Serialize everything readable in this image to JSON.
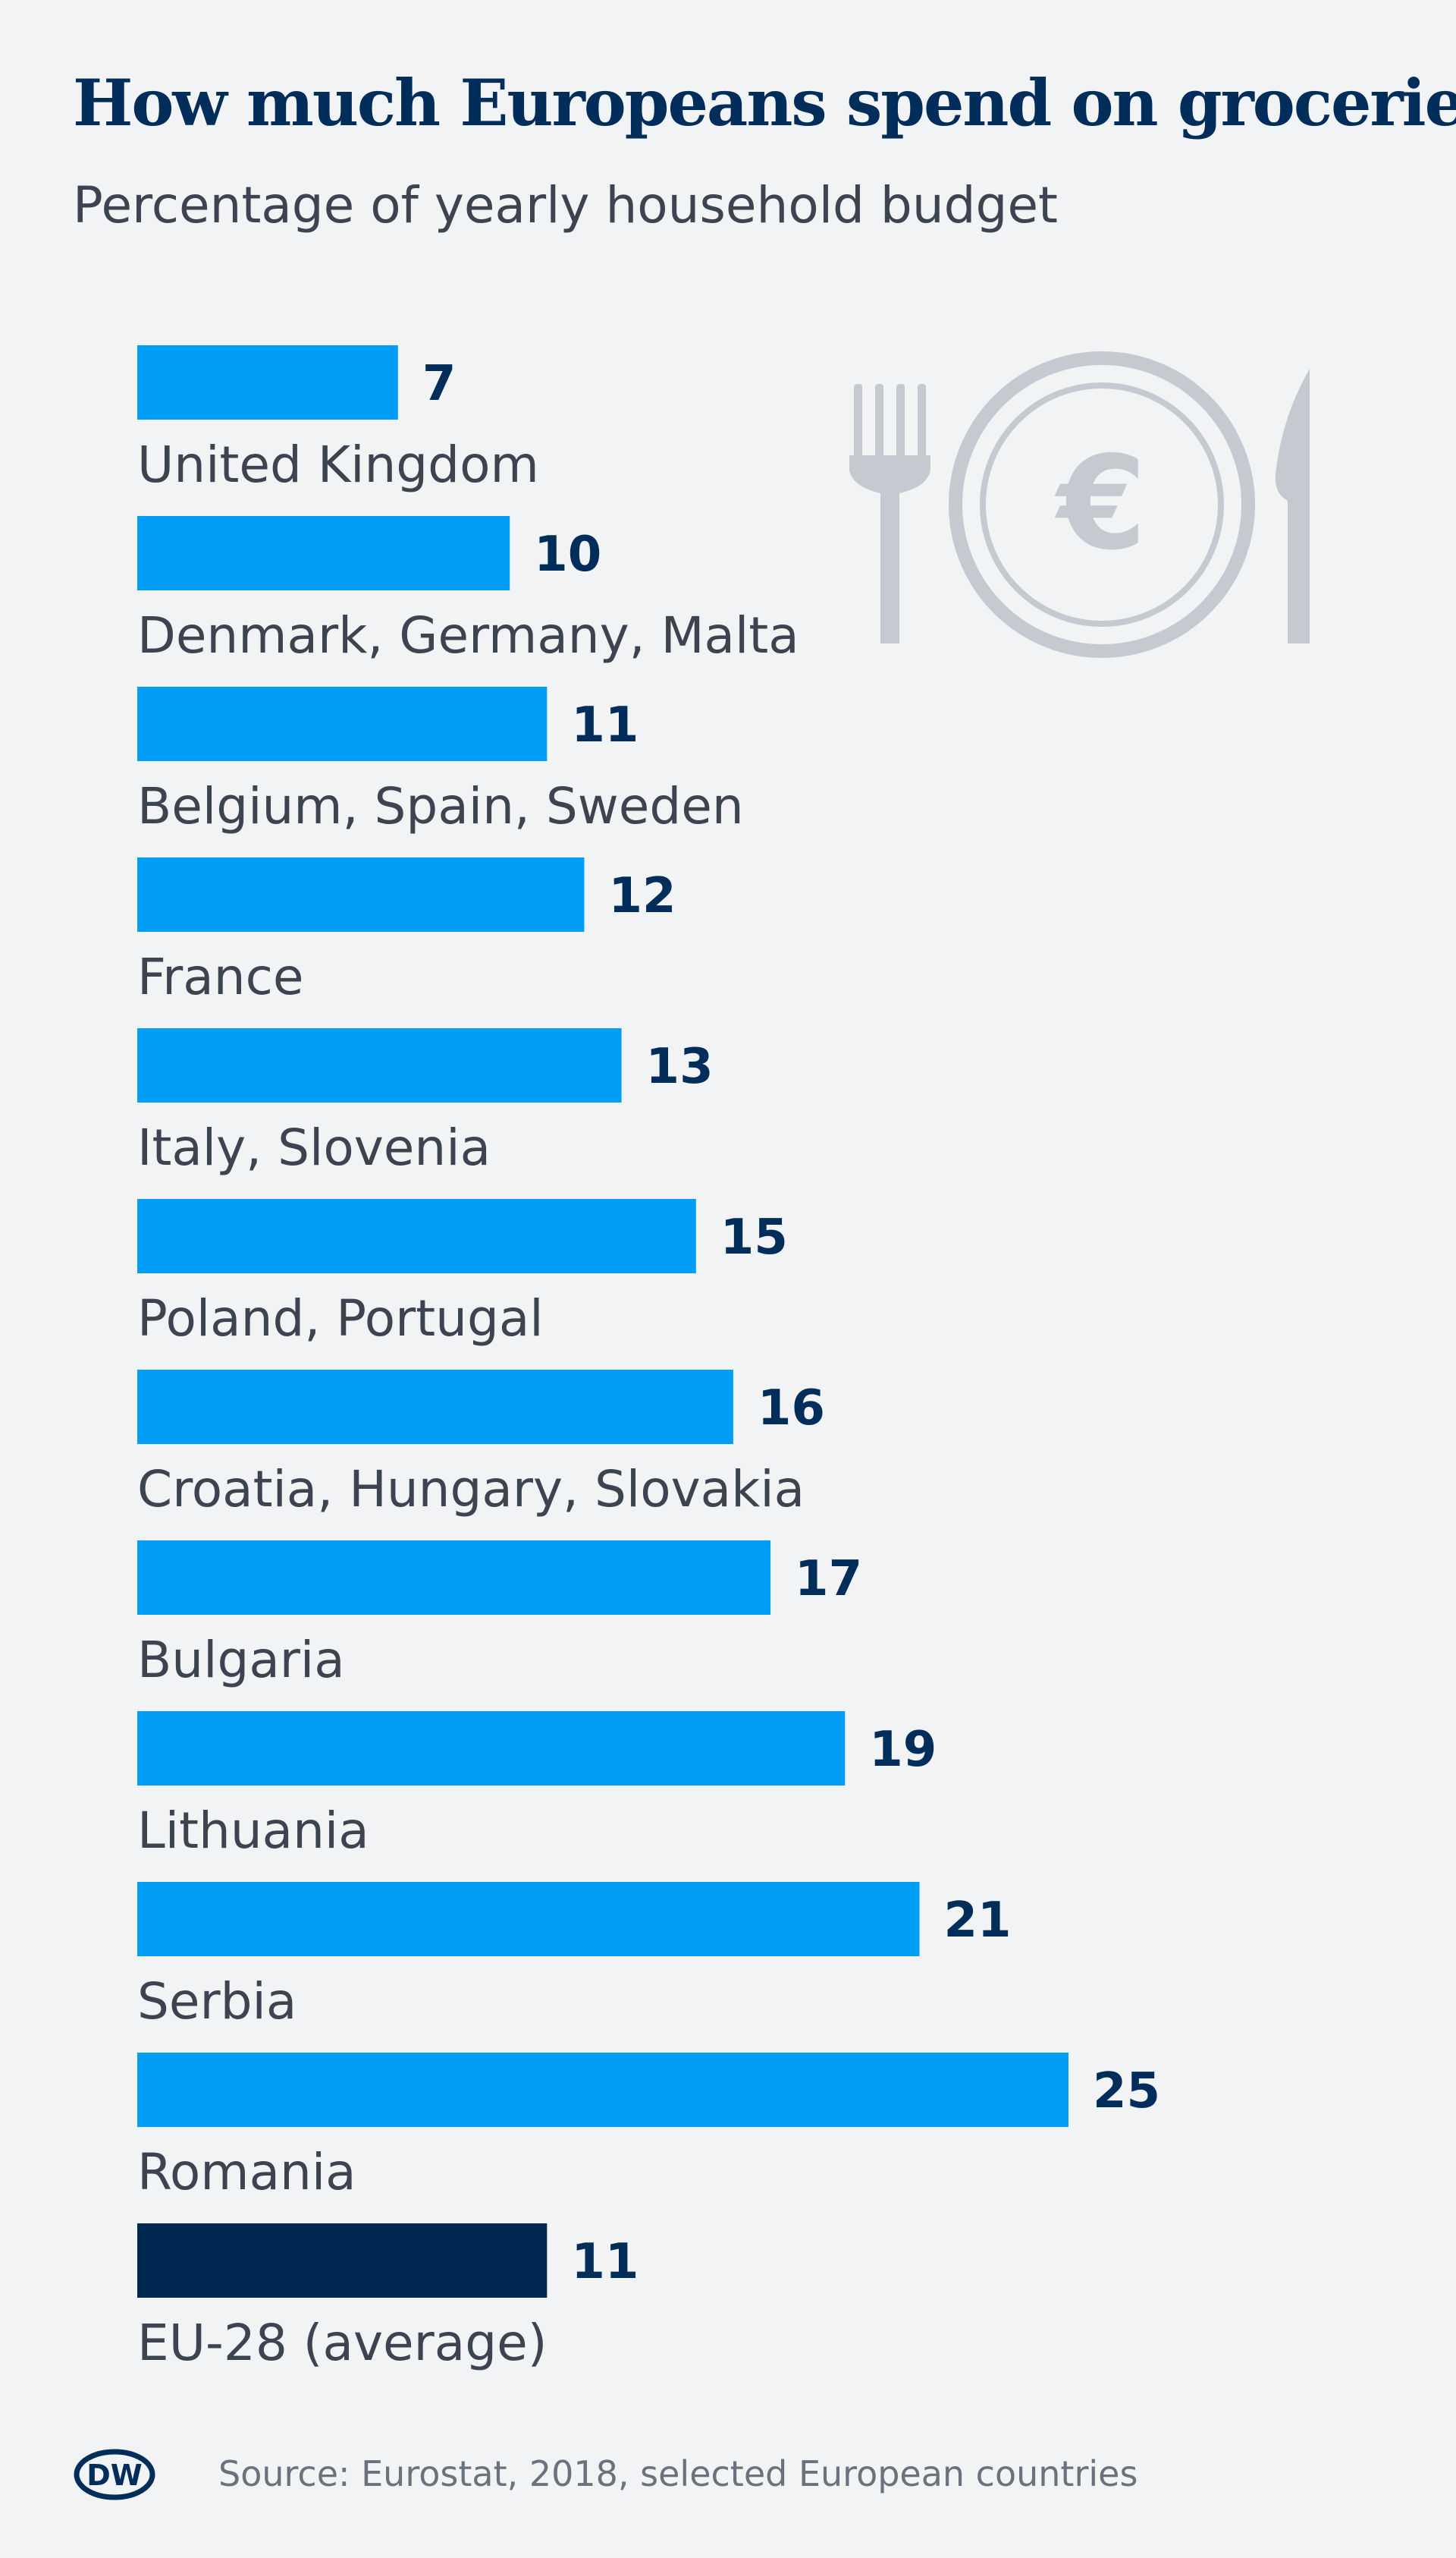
{
  "header": {
    "title": "How much Europeans spend on groceries",
    "subtitle": "Percentage of yearly household budget"
  },
  "chart_data": {
    "type": "bar",
    "orientation": "horizontal",
    "title": "How much Europeans spend on groceries",
    "subtitle": "Percentage of yearly household budget",
    "categories": [
      "United Kingdom",
      "Denmark, Germany, Malta",
      "Belgium, Spain, Sweden",
      "France",
      "Italy, Slovenia",
      "Poland, Portugal",
      "Croatia, Hungary, Slovakia",
      "Bulgaria",
      "Lithuania",
      "Serbia",
      "Romania",
      "EU-28 (average)"
    ],
    "values": [
      7,
      10,
      11,
      12,
      13,
      15,
      16,
      17,
      19,
      21,
      25,
      11
    ],
    "value_labels": [
      "7",
      "10",
      "11",
      "12",
      "13",
      "15",
      "16",
      "17",
      "19",
      "21",
      "25",
      "11"
    ],
    "highlight_index": 11,
    "colors": {
      "bar": "#019ef7",
      "highlight": "#002850",
      "value_text": "#002d5a",
      "label_text": "#3d4450"
    },
    "xlim": [
      0,
      25
    ],
    "grid": false,
    "legend": "none"
  },
  "icon": {
    "name": "fork-plate-euro-knife-icon",
    "symbol": "€",
    "color": "#c4cad0"
  },
  "footer": {
    "logo_text": "DW",
    "source": "Source: Eurostat, 2018, selected European countries"
  }
}
